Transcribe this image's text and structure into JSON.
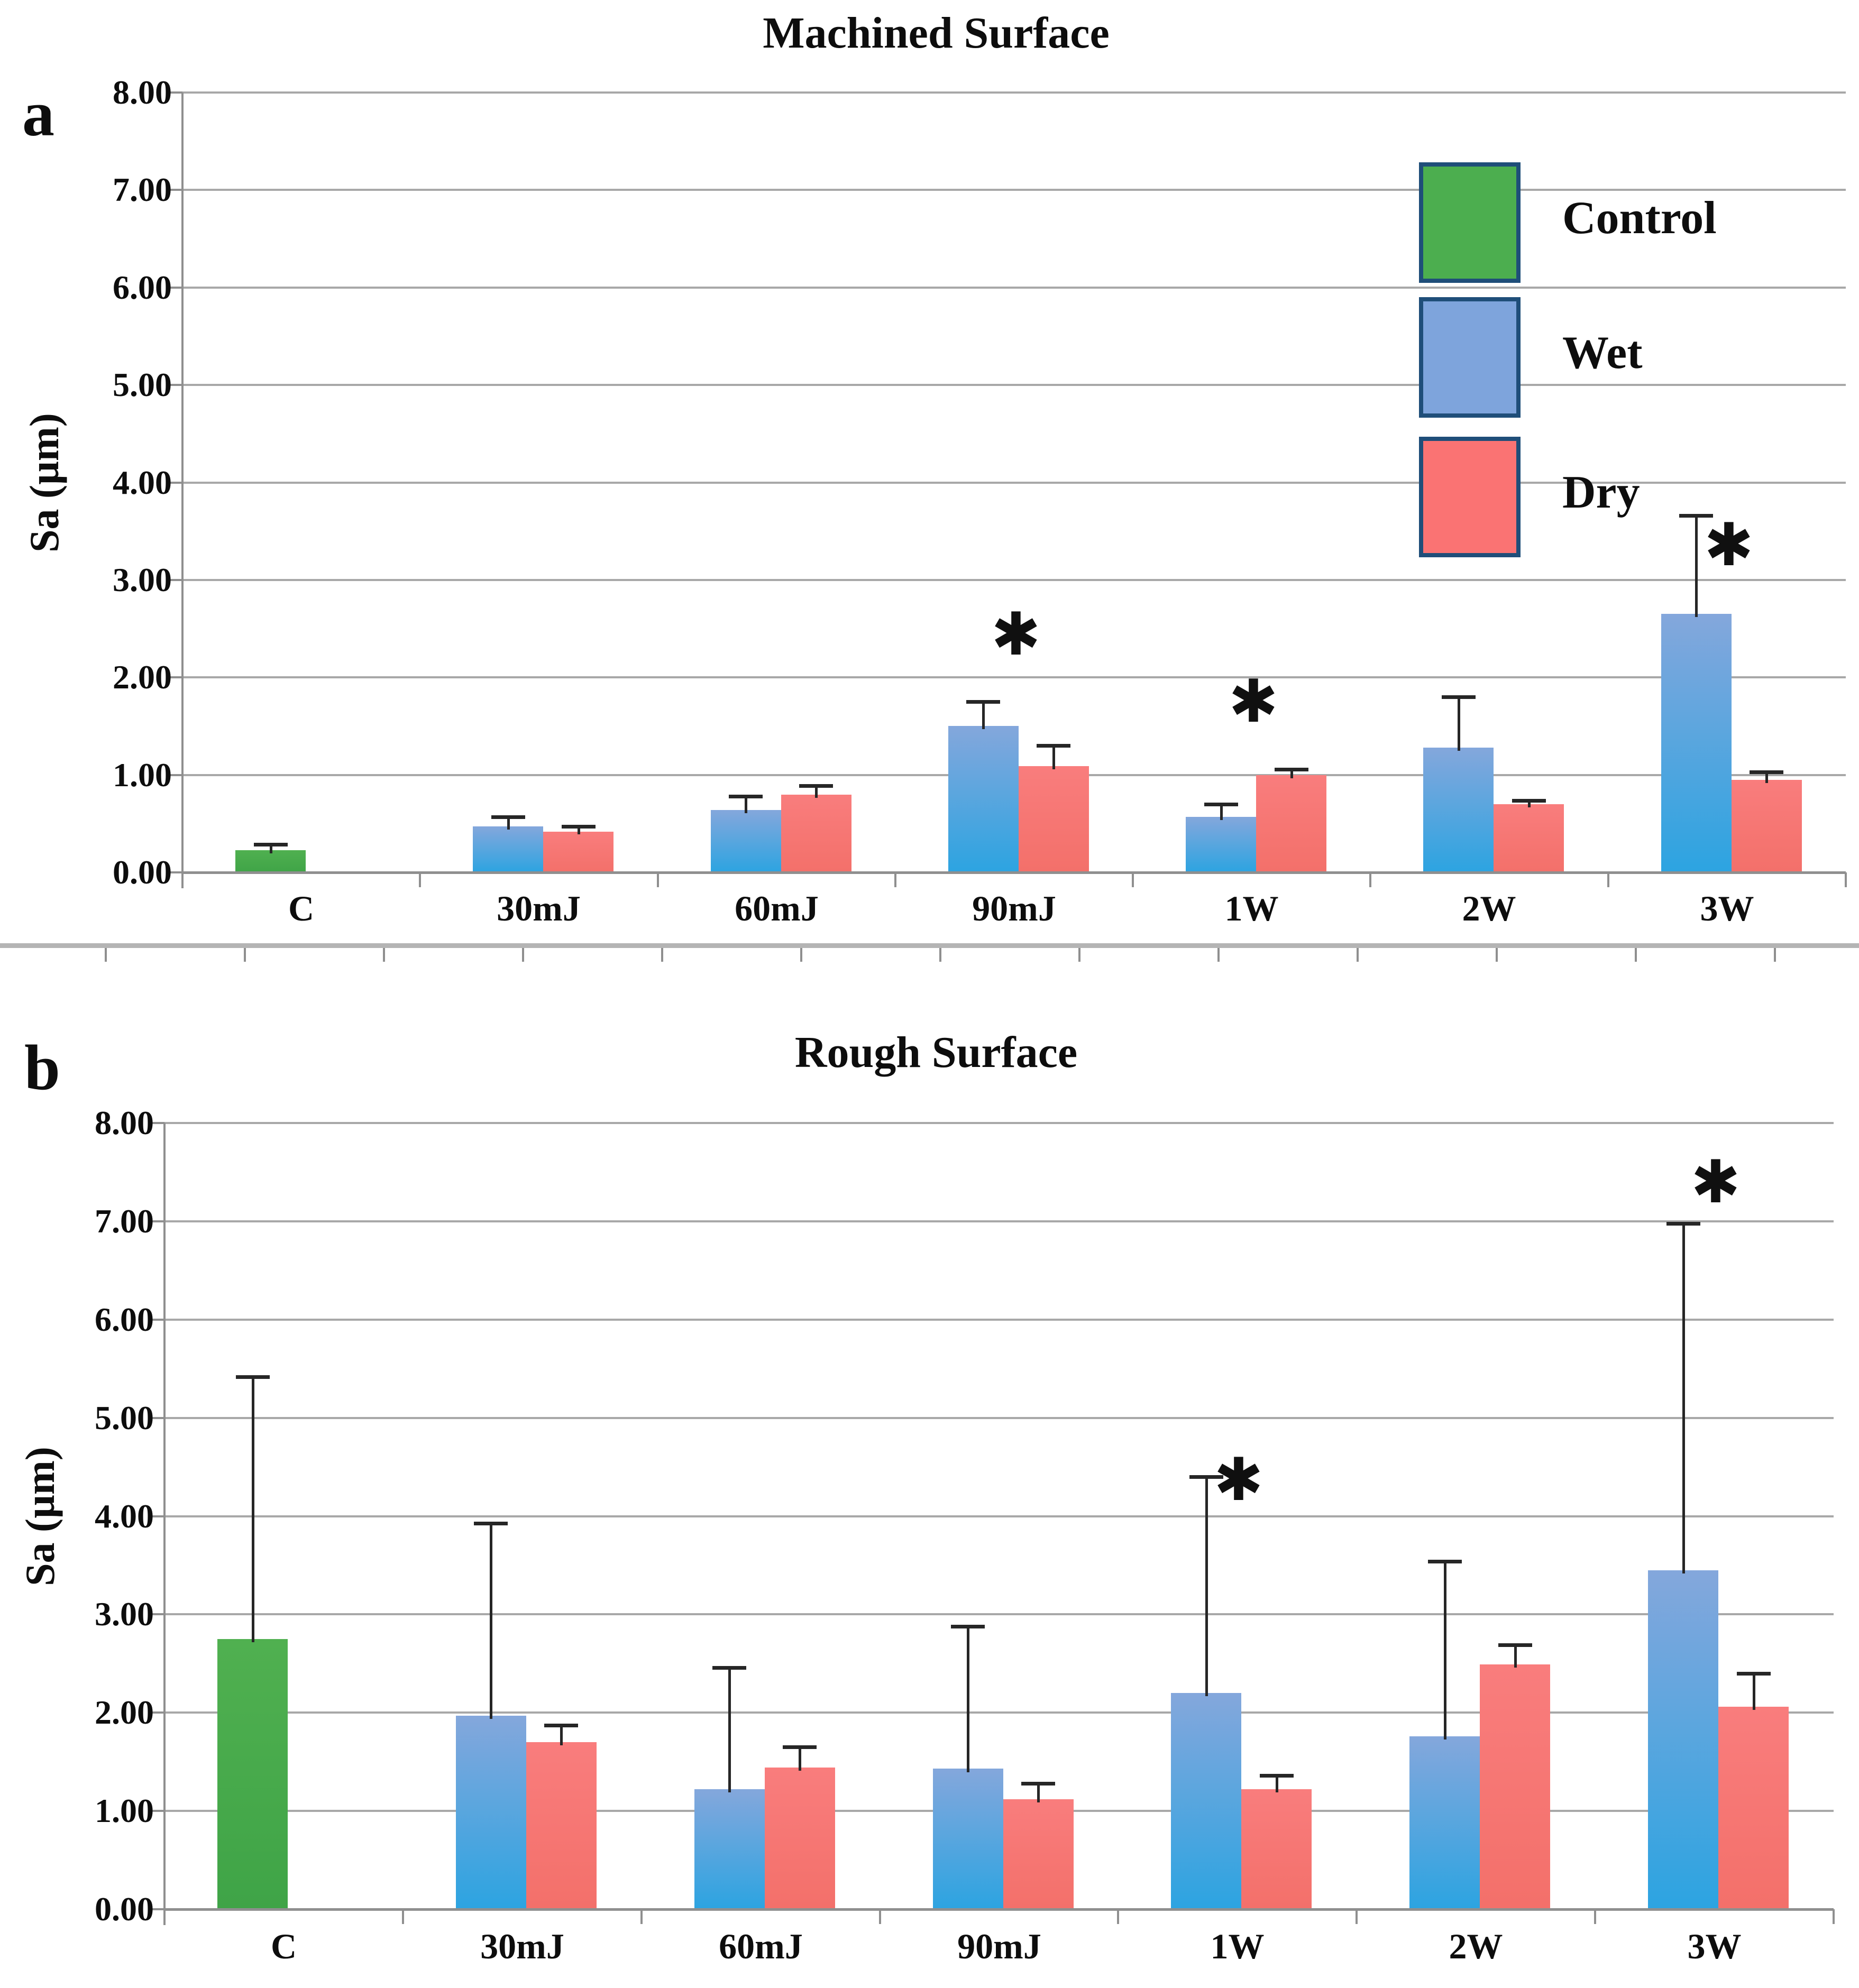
{
  "figure": {
    "panels": [
      {
        "panel_label": "a",
        "title": "Machined Surface"
      },
      {
        "panel_label": "b",
        "title": "Rough Surface"
      }
    ]
  },
  "legend": {
    "items": [
      {
        "label": "Control",
        "color": "#4cae4f"
      },
      {
        "label": "Wet",
        "color": "#7ea4dc"
      },
      {
        "label": "Dry",
        "color": "#fa7373"
      }
    ],
    "swatch_border_color": "#1f4e79"
  },
  "marker_symbol": "✱",
  "colors": {
    "grid": "#a8a8a8",
    "axis": "#8f8f8f",
    "error_bar": "#262626",
    "divider": "#b4b4b4",
    "control_top": "#50b050",
    "control_bottom": "#3fa447",
    "wet_top": "#84a7dc",
    "wet_bottom": "#2ca4e1",
    "dry_top": "#f97d7d",
    "dry_bottom": "#f3706a"
  },
  "chart_data": [
    {
      "type": "bar",
      "panel": "a",
      "title": "Machined Surface",
      "xlabel": "",
      "ylabel": "Sa (µm)",
      "ylim": [
        0,
        8
      ],
      "grid": true,
      "legend_position": "upper-right-inside",
      "ytick_labels": [
        "0.00",
        "1.00",
        "2.00",
        "3.00",
        "4.00",
        "5.00",
        "6.00",
        "7.00",
        "8.00"
      ],
      "categories": [
        "C",
        "30mJ",
        "60mJ",
        "90mJ",
        "1W",
        "2W",
        "3W"
      ],
      "series": [
        {
          "name": "Control",
          "values": [
            0.23,
            null,
            null,
            null,
            null,
            null,
            null
          ],
          "errors_top": [
            0.29,
            null,
            null,
            null,
            null,
            null,
            null
          ]
        },
        {
          "name": "Wet",
          "values": [
            null,
            0.47,
            0.64,
            1.5,
            0.57,
            1.28,
            2.65
          ],
          "errors_top": [
            null,
            0.57,
            0.78,
            1.75,
            0.7,
            1.8,
            3.66
          ]
        },
        {
          "name": "Dry",
          "values": [
            null,
            0.42,
            0.8,
            1.09,
            1.0,
            0.7,
            0.95
          ],
          "errors_top": [
            null,
            0.47,
            0.89,
            1.3,
            1.06,
            0.74,
            1.03
          ]
        }
      ],
      "significance_markers": [
        {
          "category": "90mJ",
          "value": 2.44
        },
        {
          "category": "1W",
          "value": 1.75
        },
        {
          "category": "3W",
          "value": 3.36
        }
      ]
    },
    {
      "type": "bar",
      "panel": "b",
      "title": "Rough Surface",
      "xlabel": "",
      "ylabel": "Sa (µm)",
      "ylim": [
        0,
        8
      ],
      "grid": true,
      "legend_position": "none",
      "ytick_labels": [
        "0.00",
        "1.00",
        "2.00",
        "3.00",
        "4.00",
        "5.00",
        "6.00",
        "7.00",
        "8.00"
      ],
      "categories": [
        "C",
        "30mJ",
        "60mJ",
        "90mJ",
        "1W",
        "2W",
        "3W"
      ],
      "series": [
        {
          "name": "Control",
          "values": [
            2.75,
            null,
            null,
            null,
            null,
            null,
            null
          ],
          "errors_top": [
            5.42,
            null,
            null,
            null,
            null,
            null,
            null
          ]
        },
        {
          "name": "Wet",
          "values": [
            null,
            1.97,
            1.22,
            1.43,
            2.2,
            1.76,
            3.45
          ],
          "errors_top": [
            null,
            3.93,
            2.46,
            2.88,
            4.4,
            3.54,
            6.98
          ]
        },
        {
          "name": "Dry",
          "values": [
            null,
            1.7,
            1.44,
            1.12,
            1.22,
            2.49,
            2.06
          ],
          "errors_top": [
            null,
            1.87,
            1.65,
            1.28,
            1.36,
            2.69,
            2.4
          ]
        }
      ],
      "significance_markers": [
        {
          "category": "1W",
          "value": 4.37
        },
        {
          "category": "3W",
          "value": 7.4
        }
      ]
    }
  ]
}
